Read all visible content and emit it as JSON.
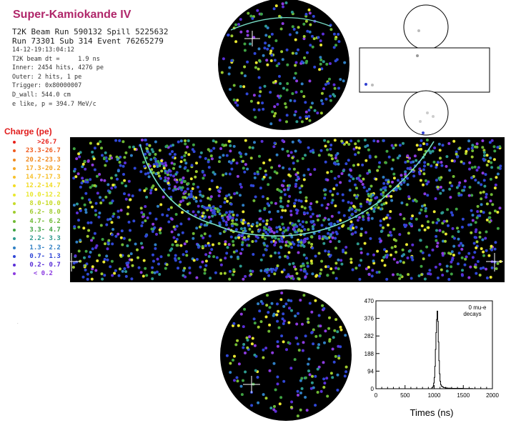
{
  "header": {
    "title": "Super-Kamiokande IV",
    "line1": "T2K Beam Run 590132 Spill 5225632",
    "line2": "Run 73301 Sub 314 Event 76265279",
    "date": "14-12-19:13:04:12",
    "beam_dt": "T2K beam dt =     1.9 ns",
    "inner": "Inner: 2454 hits, 4276 pe",
    "outer": "Outer: 2 hits, 1 pe",
    "trigger": "Trigger: 0x80000007",
    "dwall": "D_wall: 544.0 cm",
    "elike": "e like, p = 394.7 MeV/c"
  },
  "legend": {
    "title": "Charge (pe)",
    "items": [
      {
        "label": "   >26.7",
        "color": "#e8201a"
      },
      {
        "label": "23.3-26.7",
        "color": "#f05a1e"
      },
      {
        "label": "20.2-23.3",
        "color": "#f08a20"
      },
      {
        "label": "17.3-20.2",
        "color": "#f5a623"
      },
      {
        "label": "14.7-17.3",
        "color": "#f7c12b"
      },
      {
        "label": "12.2-14.7",
        "color": "#f2dc24"
      },
      {
        "label": "10.0-12.2",
        "color": "#e9e831"
      },
      {
        "label": " 8.0-10.0",
        "color": "#c8dc2a"
      },
      {
        "label": " 6.2- 8.0",
        "color": "#9fcc2e"
      },
      {
        "label": " 4.7- 6.2",
        "color": "#6fba34"
      },
      {
        "label": " 3.3- 4.7",
        "color": "#3fa342"
      },
      {
        "label": " 2.2- 3.3",
        "color": "#2d9a8e"
      },
      {
        "label": " 1.3- 2.2",
        "color": "#2f7fc4"
      },
      {
        "label": " 0.7- 1.3",
        "color": "#3047d6"
      },
      {
        "label": " 0.2- 0.7",
        "color": "#5a2fd8"
      },
      {
        "label": "  < 0.2",
        "color": "#8c3be0"
      }
    ]
  },
  "chart_data": {
    "type": "bar",
    "xlabel": "Times (ns)",
    "ylabel": "",
    "xlim": [
      0,
      2000
    ],
    "ylim": [
      0,
      470
    ],
    "x_ticks": [
      "0",
      "500",
      "1000",
      "1500",
      "2000"
    ],
    "y_ticks": [
      "0",
      "94",
      "188",
      "282",
      "376",
      "470"
    ],
    "annotation_line1": "0 mu-e",
    "annotation_line2": "decays",
    "bins": [
      {
        "x": 960,
        "value": 6
      },
      {
        "x": 980,
        "value": 14
      },
      {
        "x": 990,
        "value": 30
      },
      {
        "x": 1000,
        "value": 60
      },
      {
        "x": 1010,
        "value": 120
      },
      {
        "x": 1020,
        "value": 210
      },
      {
        "x": 1030,
        "value": 300
      },
      {
        "x": 1040,
        "value": 370
      },
      {
        "x": 1050,
        "value": 415
      },
      {
        "x": 1060,
        "value": 360
      },
      {
        "x": 1070,
        "value": 250
      },
      {
        "x": 1080,
        "value": 150
      },
      {
        "x": 1090,
        "value": 80
      },
      {
        "x": 1100,
        "value": 40
      },
      {
        "x": 1110,
        "value": 22
      },
      {
        "x": 1120,
        "value": 14
      },
      {
        "x": 1140,
        "value": 9
      },
      {
        "x": 1160,
        "value": 6
      },
      {
        "x": 1190,
        "value": 4
      },
      {
        "x": 1230,
        "value": 3
      },
      {
        "x": 1300,
        "value": 2
      },
      {
        "x": 1400,
        "value": 2
      },
      {
        "x": 1500,
        "value": 1
      },
      {
        "x": 1650,
        "value": 1
      }
    ]
  },
  "colors": {
    "pmt_background": "#000000",
    "ring": "#78e0c8",
    "hit_palette": [
      "#3047d6",
      "#3047d6",
      "#3047d6",
      "#5a2fd8",
      "#2f7fc4",
      "#2d9a8e",
      "#8c3be0",
      "#3fa342",
      "#6fba34",
      "#9fcc2e",
      "#e9e831"
    ]
  }
}
